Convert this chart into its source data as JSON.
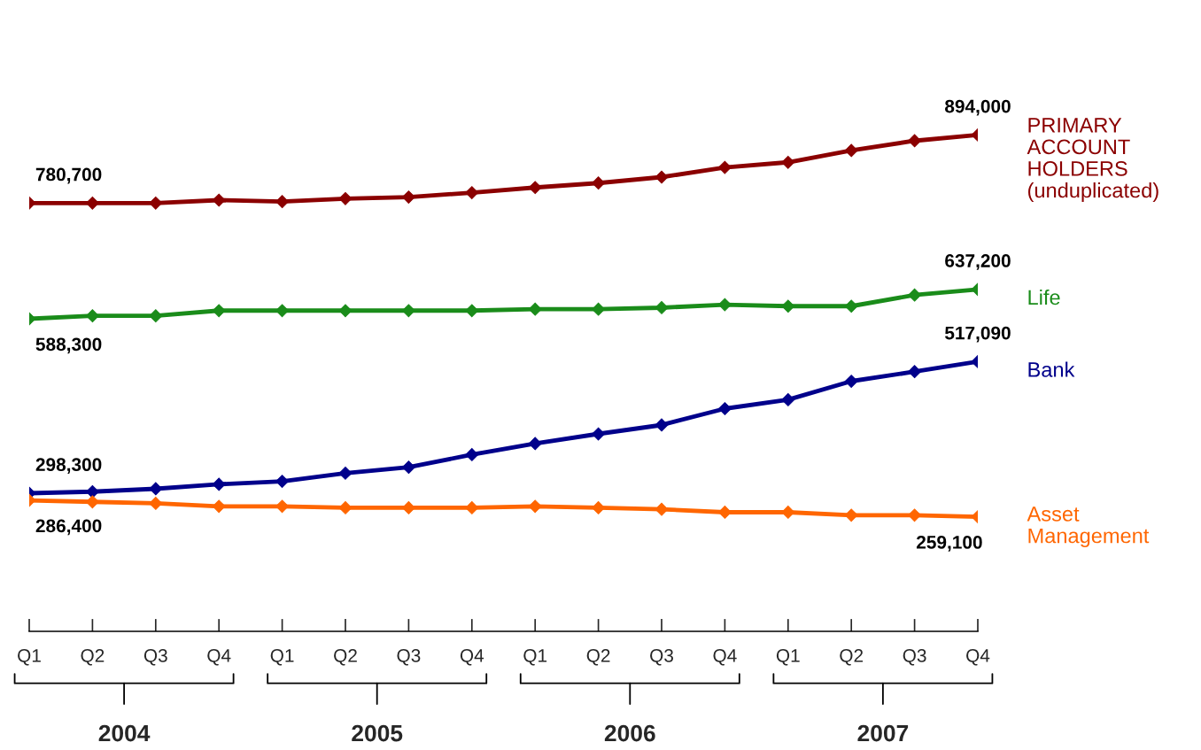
{
  "chart_data": {
    "type": "line",
    "categories": [
      "Q1",
      "Q2",
      "Q3",
      "Q4",
      "Q1",
      "Q2",
      "Q3",
      "Q4",
      "Q1",
      "Q2",
      "Q3",
      "Q4",
      "Q1",
      "Q2",
      "Q3",
      "Q4"
    ],
    "series": [
      {
        "name": "PRIMARY\nACCOUNT\nHOLDERS\n(unduplicated)",
        "color": "#8b0000",
        "values": [
          780700,
          780700,
          780700,
          785600,
          783200,
          788100,
          790600,
          798000,
          806600,
          814000,
          823900,
          839900,
          848500,
          868200,
          884300,
          894000
        ],
        "value_labels": [
          "780,700",
          null,
          null,
          null,
          null,
          null,
          null,
          null,
          null,
          null,
          null,
          null,
          null,
          null,
          null,
          "894,000"
        ]
      },
      {
        "name": "Life",
        "color": "#1a8c1a",
        "values": [
          588300,
          593200,
          593200,
          601900,
          601900,
          601900,
          601900,
          601900,
          604300,
          604300,
          606800,
          611700,
          609300,
          609300,
          627800,
          637200
        ],
        "value_labels": [
          "588,300",
          null,
          null,
          null,
          null,
          null,
          null,
          null,
          null,
          null,
          null,
          null,
          null,
          null,
          null,
          "637,200"
        ]
      },
      {
        "name": "Bank",
        "color": "#00008b",
        "values": [
          298300,
          300800,
          305700,
          313100,
          318000,
          331600,
          341500,
          362400,
          380900,
          396900,
          411700,
          438900,
          453700,
          484500,
          500500,
          517090
        ],
        "value_labels": [
          "298,300",
          null,
          null,
          null,
          null,
          null,
          null,
          null,
          null,
          null,
          null,
          null,
          null,
          null,
          null,
          "517,090"
        ]
      },
      {
        "name": "Asset\nManagement",
        "color": "#ff6600",
        "values": [
          286400,
          283900,
          281500,
          276500,
          276500,
          274100,
          274100,
          274100,
          276500,
          274100,
          271600,
          266700,
          266700,
          261700,
          261700,
          259100
        ],
        "value_labels": [
          "286,400",
          null,
          null,
          null,
          null,
          null,
          null,
          null,
          null,
          null,
          null,
          null,
          null,
          null,
          null,
          "259,100"
        ]
      }
    ],
    "tick_labels": "x",
    "grid": false,
    "marker": "diamond",
    "line_style": "solid",
    "annotations": [
      "2004",
      "2005",
      "2006",
      "2007"
    ]
  }
}
